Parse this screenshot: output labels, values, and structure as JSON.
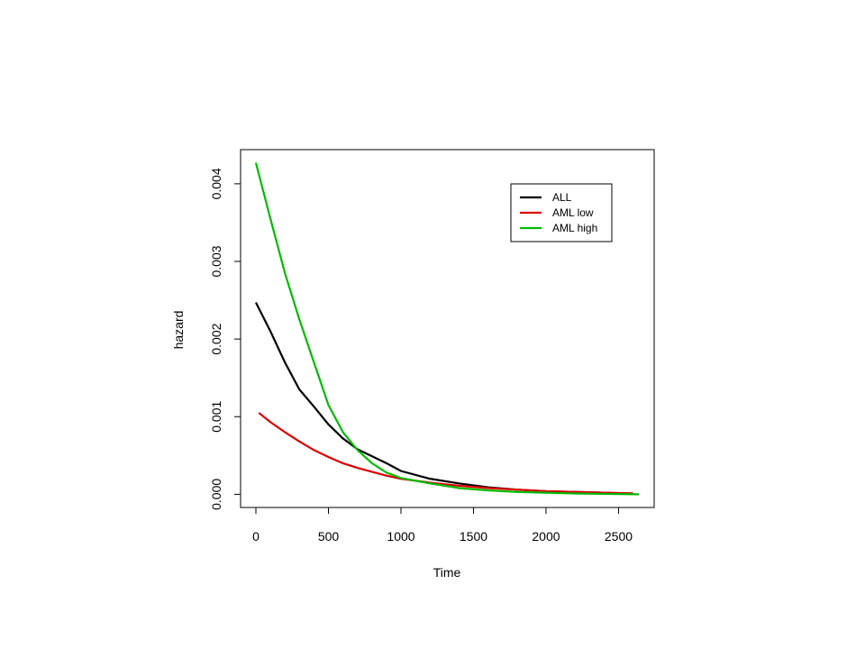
{
  "chart_data": {
    "type": "line",
    "xlabel": "Time",
    "ylabel": "hazard",
    "xlim": [
      -105.6,
      2745.6
    ],
    "xticks": [
      0,
      500,
      1000,
      1500,
      2000,
      2500
    ],
    "ylim": [
      -0.00017,
      0.00444
    ],
    "yticks": [
      {
        "value": 0,
        "label": "0.000"
      },
      {
        "value": 0.001,
        "label": "0.001"
      },
      {
        "value": 0.002,
        "label": "0.002"
      },
      {
        "value": 0.003,
        "label": "0.003"
      },
      {
        "value": 0.004,
        "label": "0.004"
      }
    ],
    "legend": "topright",
    "series": [
      {
        "name": "ALL",
        "color": "#000000",
        "x": [
          0,
          100,
          200,
          300,
          400,
          500,
          600,
          700,
          800,
          900,
          1000,
          1200,
          1400,
          1600,
          1800,
          2000,
          2200,
          2400,
          2600
        ],
        "values": [
          0.00247,
          0.0021,
          0.0017,
          0.00135,
          0.00113,
          0.0009,
          0.00072,
          0.00058,
          0.00049,
          0.0004,
          0.0003,
          0.0002,
          0.00014,
          9e-05,
          6e-05,
          4e-05,
          3e-05,
          2e-05,
          1e-05
        ]
      },
      {
        "name": "AML low",
        "color": "#dd0000",
        "x": [
          20,
          100,
          200,
          300,
          400,
          500,
          600,
          700,
          800,
          900,
          1000,
          1200,
          1400,
          1600,
          1800,
          2000,
          2200,
          2400,
          2600
        ],
        "values": [
          0.00105,
          0.00093,
          0.0008,
          0.00068,
          0.00057,
          0.00048,
          0.0004,
          0.00034,
          0.00029,
          0.00024,
          0.0002,
          0.00015,
          0.00011,
          8e-05,
          6e-05,
          4e-05,
          3e-05,
          2e-05,
          1e-05
        ]
      },
      {
        "name": "AML high",
        "color": "#00bb00",
        "x": [
          0,
          100,
          200,
          300,
          400,
          500,
          600,
          700,
          800,
          900,
          1000,
          1200,
          1400,
          1600,
          1800,
          2000,
          2200,
          2400,
          2640
        ],
        "values": [
          0.00427,
          0.00355,
          0.00285,
          0.00225,
          0.0017,
          0.00115,
          0.0008,
          0.00057,
          0.0004,
          0.00028,
          0.00021,
          0.00014,
          8e-05,
          5e-05,
          3e-05,
          2e-05,
          1e-05,
          5e-06,
          0
        ]
      }
    ]
  }
}
